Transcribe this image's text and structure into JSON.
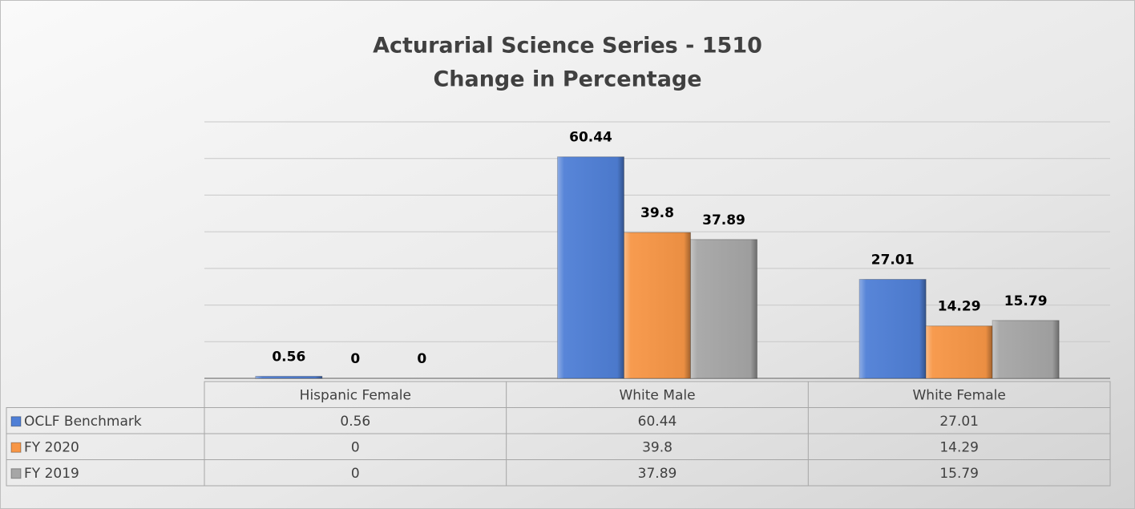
{
  "chart_data": {
    "type": "bar",
    "title": "Acturarial Science Series - 1510",
    "subtitle": "Change in Percentage",
    "categories": [
      "Hispanic  Female",
      "White Male",
      "White Female"
    ],
    "series": [
      {
        "name": "OCLF Benchmark",
        "color": "#4f7fd6",
        "values": [
          0.56,
          60.44,
          27.01
        ]
      },
      {
        "name": "FY 2020",
        "color": "#f79646",
        "values": [
          0,
          39.8,
          14.29
        ]
      },
      {
        "name": "FY 2019",
        "color": "#a6a6a6",
        "values": [
          0,
          37.89,
          15.79
        ]
      }
    ],
    "ylim": [
      0,
      70
    ],
    "yticks": [
      0,
      10,
      20,
      30,
      40,
      50,
      60,
      70
    ],
    "grid": true
  }
}
